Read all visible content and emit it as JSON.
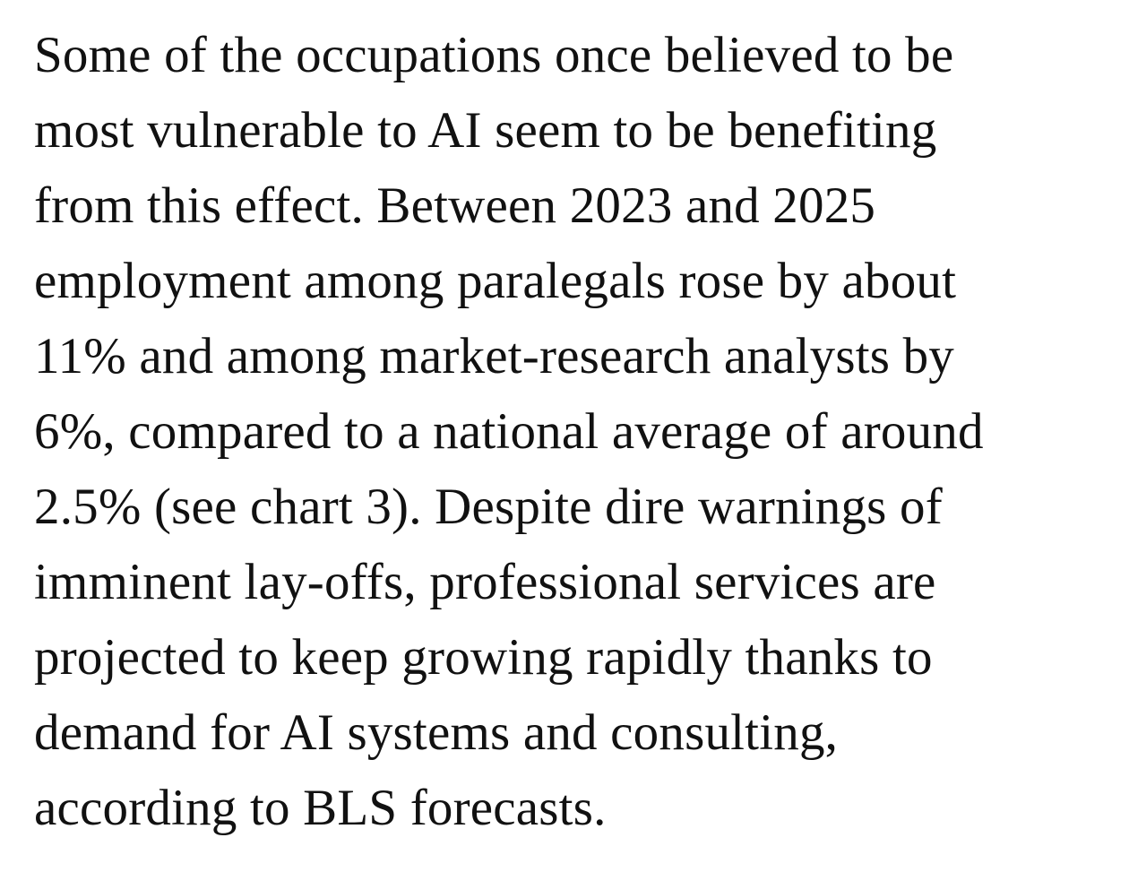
{
  "paragraph": {
    "lines": [
      "Some of the occupations once believed to be",
      "most vulnerable to AI seem to be benefiting",
      "from this effect. Between 2023 and 2025",
      "employment among paralegals rose by about",
      "11% and among market-research analysts by",
      "6%, compared to a national average of around",
      "2.5% (see chart 3). Despite dire warnings of",
      "imminent lay-offs, professional services are",
      "projected to keep growing rapidly thanks to",
      "demand for AI systems and consulting,",
      "according to BLS forecasts."
    ]
  }
}
